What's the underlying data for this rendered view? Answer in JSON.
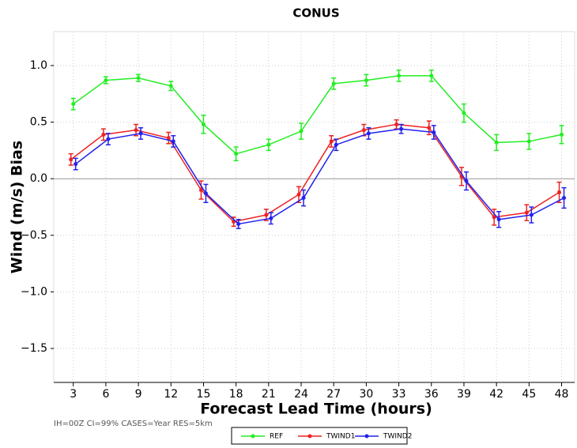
{
  "chart_data": {
    "type": "line",
    "title": "CONUS",
    "y_label": "Wind (m/s) Bias",
    "x_label": "Forecast Lead Time (hours)",
    "footnote": "IH=00Z CI=99% CASES=Year RES=5km",
    "x": [
      3,
      6,
      9,
      12,
      15,
      18,
      21,
      24,
      27,
      30,
      33,
      36,
      39,
      42,
      45,
      48
    ],
    "xlim": [
      1.2,
      49.2
    ],
    "xticks": [
      3,
      6,
      9,
      12,
      15,
      18,
      21,
      24,
      27,
      30,
      33,
      36,
      39,
      42,
      45,
      48
    ],
    "ylim": [
      -1.8,
      1.3
    ],
    "yticks": [
      {
        "value": -1.5,
        "label": "−1.5"
      },
      {
        "value": -1.0,
        "label": "−1.0"
      },
      {
        "value": -0.5,
        "label": "−0.5"
      },
      {
        "value": 0.0,
        "label": "0.0"
      },
      0.5,
      {
        "value": 1.0,
        "label": "1.0"
      }
    ],
    "grid": true,
    "legend": "bottom",
    "series": [
      {
        "name": "REF",
        "color": "#22ee22",
        "values": [
          0.66,
          0.87,
          0.89,
          0.82,
          0.48,
          0.22,
          0.3,
          0.42,
          0.84,
          0.87,
          0.91,
          0.91,
          0.58,
          0.32,
          0.33,
          0.39
        ],
        "errors": [
          0.05,
          0.03,
          0.03,
          0.04,
          0.08,
          0.06,
          0.05,
          0.07,
          0.05,
          0.05,
          0.05,
          0.05,
          0.08,
          0.07,
          0.07,
          0.08
        ]
      },
      {
        "name": "TWIND1",
        "color": "#ee2222",
        "values": [
          0.17,
          0.39,
          0.43,
          0.36,
          -0.1,
          -0.38,
          -0.32,
          -0.14,
          0.33,
          0.43,
          0.48,
          0.45,
          0.02,
          -0.34,
          -0.3,
          -0.12
        ],
        "errors": [
          0.05,
          0.05,
          0.05,
          0.05,
          0.08,
          0.04,
          0.05,
          0.07,
          0.05,
          0.05,
          0.04,
          0.06,
          0.08,
          0.07,
          0.07,
          0.09
        ]
      },
      {
        "name": "TWIND2",
        "color": "#2222ee",
        "values": [
          0.13,
          0.35,
          0.4,
          0.33,
          -0.13,
          -0.4,
          -0.35,
          -0.17,
          0.3,
          0.4,
          0.44,
          0.41,
          -0.02,
          -0.36,
          -0.32,
          -0.17
        ],
        "errors": [
          0.05,
          0.05,
          0.05,
          0.05,
          0.08,
          0.04,
          0.05,
          0.07,
          0.05,
          0.05,
          0.04,
          0.06,
          0.08,
          0.07,
          0.07,
          0.09
        ]
      }
    ]
  }
}
